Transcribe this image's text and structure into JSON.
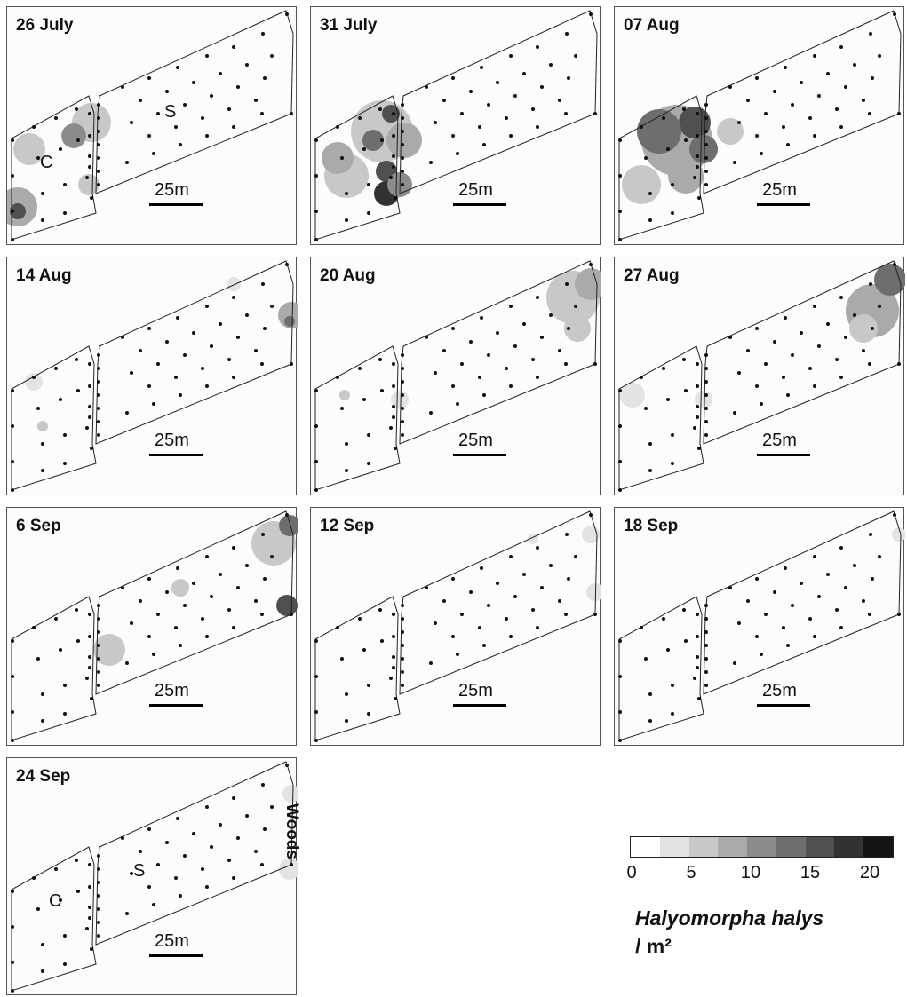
{
  "panels": [
    {
      "label": "26 July"
    },
    {
      "label": "31 July"
    },
    {
      "label": "07 Aug"
    },
    {
      "label": "14 Aug"
    },
    {
      "label": "20 Aug"
    },
    {
      "label": "27 Aug"
    },
    {
      "label": "6 Sep"
    },
    {
      "label": "12 Sep"
    },
    {
      "label": "18 Sep"
    },
    {
      "label": "24 Sep"
    }
  ],
  "scale_label": "25m",
  "zone_labels": {
    "crop": "C",
    "strip": "S"
  },
  "woods_label": "Woods",
  "legend": {
    "colors": [
      "#ffffff",
      "#e3e3e3",
      "#c8c8c8",
      "#aaaaaa",
      "#8c8c8c",
      "#6e6e6e",
      "#505050",
      "#323232",
      "#141414"
    ],
    "ticks": [
      "0",
      "5",
      "10",
      "15",
      "20"
    ],
    "tick_values": [
      0,
      5,
      10,
      15,
      20
    ],
    "max": 22
  },
  "species": "Halyomorpha halys",
  "unit": "/ m²"
}
